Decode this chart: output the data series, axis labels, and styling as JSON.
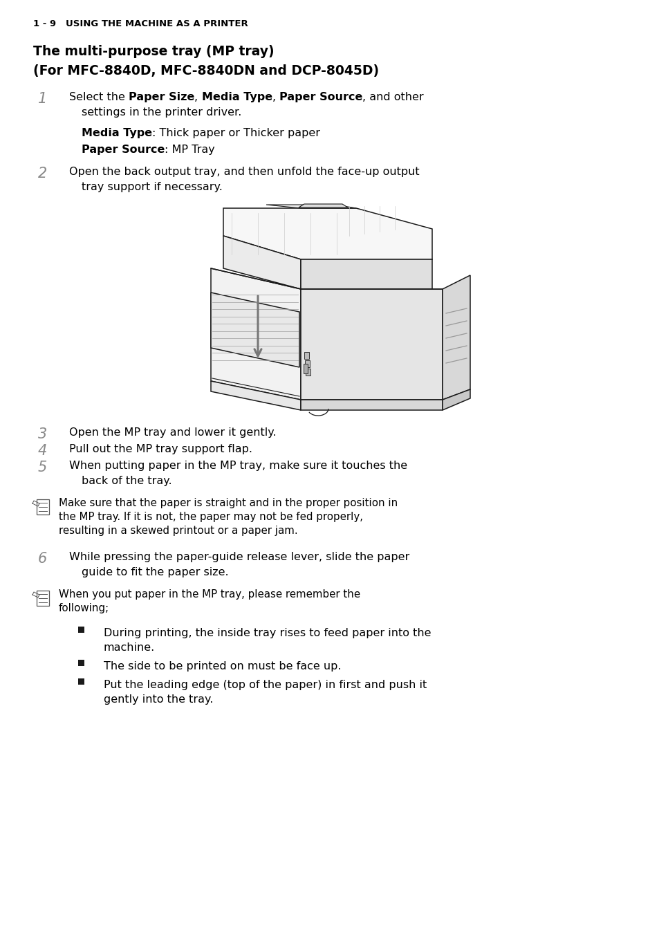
{
  "bg_color": "#ffffff",
  "title_line1": "The multi-purpose tray (MP tray)",
  "title_line2": "(For MFC-8840D, MFC-8840DN and DCP-8045D)",
  "step1_line2": "settings in the printer driver.",
  "media_type_label": "Media Type",
  "media_type_text": ": Thick paper or Thicker paper",
  "paper_source_label": "Paper Source",
  "paper_source_text": ": MP Tray",
  "step2_text": "Open the back output tray, and then unfold the face-up output",
  "step2_line2": "tray support if necessary.",
  "step3_text": "Open the MP tray and lower it gently.",
  "step4_text": "Pull out the MP tray support flap.",
  "step5_text": "When putting paper in the MP tray, make sure it touches the",
  "step5_line2": "back of the tray.",
  "note1_lines": [
    "Make sure that the paper is straight and in the proper position in",
    "the MP tray. If it is not, the paper may not be fed properly,",
    "resulting in a skewed printout or a paper jam."
  ],
  "step6_text": "While pressing the paper-guide release lever, slide the paper",
  "step6_line2": "guide to fit the paper size.",
  "note2_lines": [
    "When you put paper in the MP tray, please remember the",
    "following;"
  ],
  "bullet1_lines": [
    "During printing, the inside tray rises to feed paper into the",
    "machine."
  ],
  "bullet2_lines": [
    "The side to be printed on must be face up."
  ],
  "bullet3_lines": [
    "Put the leading edge (top of the paper) in first and push it",
    "gently into the tray."
  ],
  "footer": "1 - 9   USING THE MACHINE AS A PRINTER",
  "title_fontsize": 13.5,
  "body_fontsize": 11.5,
  "note_fontsize": 10.8,
  "num_fontsize": 15,
  "footer_fontsize": 9.5
}
